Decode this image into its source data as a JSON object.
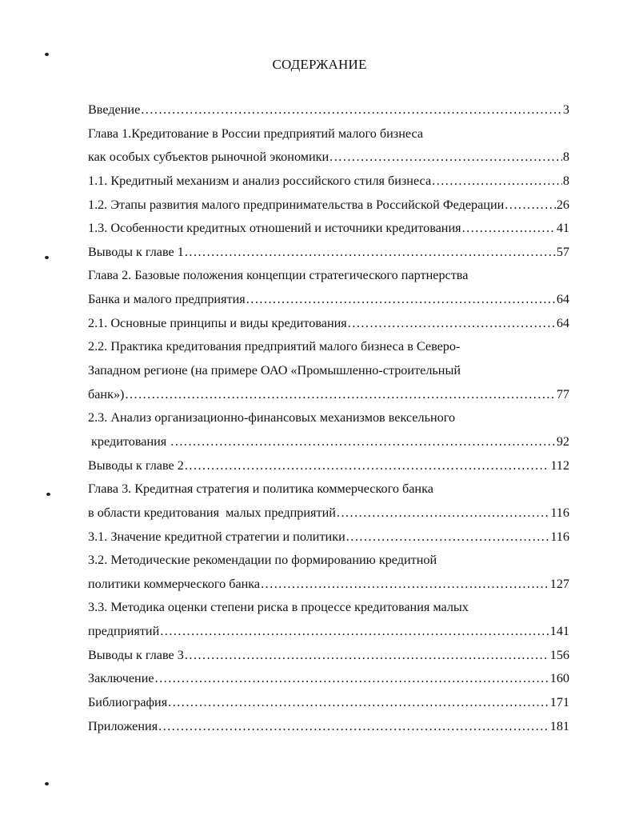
{
  "title": "СОДЕРЖАНИЕ",
  "entries": [
    {
      "text": "Введение",
      "page": "3"
    },
    {
      "text": "Глава 1.Кредитование в России предприятий малого бизнеса",
      "page": null
    },
    {
      "text": "как особых субъектов рыночной экономики",
      "page": "8"
    },
    {
      "text": "1.1. Кредитный механизм и анализ российского стиля бизнеса",
      "page": "8"
    },
    {
      "text": "1.2. Этапы развития малого предпринимательства в Российской Федерации",
      "page": "26"
    },
    {
      "text": "1.3. Особенности кредитных отношений и источники кредитования",
      "page": "41"
    },
    {
      "text": "Выводы к главе 1",
      "page": "57"
    },
    {
      "text": "Глава 2. Базовые положения концепции стратегического партнерства",
      "page": null
    },
    {
      "text": "Банка и малого предприятия",
      "page": "64"
    },
    {
      "text": "2.1. Основные принципы и виды кредитования",
      "page": "64"
    },
    {
      "text": "2.2. Практика кредитования предприятий малого бизнеса в Северо-",
      "page": null
    },
    {
      "text": "Западном регионе (на примере ОАО «Промышленно-строительный",
      "page": null
    },
    {
      "text": "банк»)",
      "page": "77"
    },
    {
      "text": "2.3. Анализ организационно-финансовых механизмов вексельного",
      "page": null
    },
    {
      "text": " кредитования ",
      "page": "92"
    },
    {
      "text": "Выводы к главе 2",
      "page": "112"
    },
    {
      "text": "Глава 3. Кредитная стратегия и политика коммерческого банка",
      "page": null
    },
    {
      "text": "в области кредитования  малых предприятий",
      "page": "116"
    },
    {
      "text": "3.1. Значение кредитной стратегии и политики",
      "page": "116"
    },
    {
      "text": "3.2. Методические рекомендации по формированию кредитной",
      "page": null
    },
    {
      "text": "политики коммерческого банка",
      "page": "127"
    },
    {
      "text": "3.3. Методика оценки степени риска в процессе кредитования малых",
      "page": null
    },
    {
      "text": "предприятий",
      "page": "141"
    },
    {
      "text": "Выводы к главе 3",
      "page": "156"
    },
    {
      "text": "Заключение",
      "page": "160"
    },
    {
      "text": "Библиография",
      "page": "171"
    },
    {
      "text": "Приложения",
      "page": "181"
    }
  ]
}
